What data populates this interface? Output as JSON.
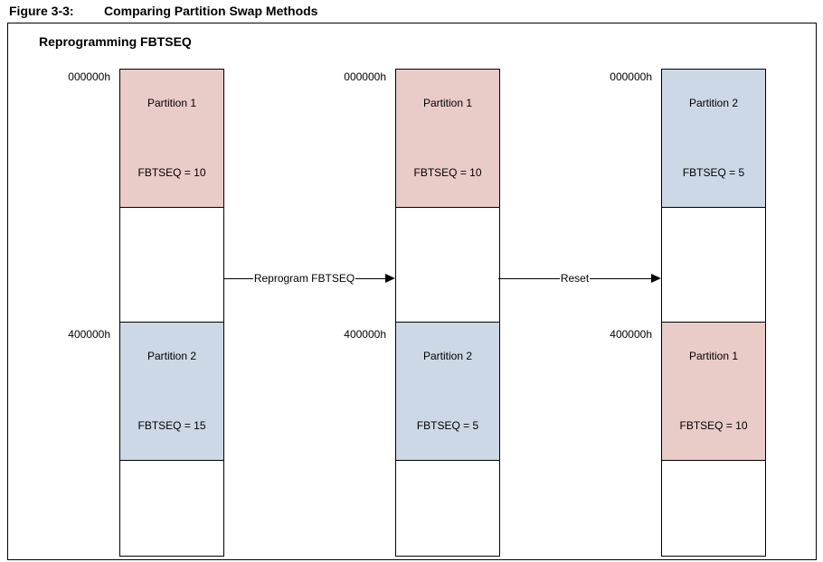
{
  "figure": {
    "label": "Figure 3-3:",
    "title": "Comparing Partition Swap Methods",
    "subtitle": "Reprogramming FBTSEQ"
  },
  "colors": {
    "partition1_fill": "#e9cbc8",
    "partition2_fill": "#ccd8e5",
    "line": "#000000"
  },
  "columns": [
    {
      "top_address": "000000h",
      "bottom_address": "400000h",
      "top_box": {
        "label": "Partition 1",
        "fbtseq": "FBTSEQ = 10",
        "color": "#e9cbc8"
      },
      "bottom_box": {
        "label": "Partition 2",
        "fbtseq": "FBTSEQ = 15",
        "color": "#ccd8e5"
      }
    },
    {
      "top_address": "000000h",
      "bottom_address": "400000h",
      "top_box": {
        "label": "Partition 1",
        "fbtseq": "FBTSEQ = 10",
        "color": "#e9cbc8"
      },
      "bottom_box": {
        "label": "Partition 2",
        "fbtseq": "FBTSEQ = 5",
        "color": "#ccd8e5"
      }
    },
    {
      "top_address": "000000h",
      "bottom_address": "400000h",
      "top_box": {
        "label": "Partition 2",
        "fbtseq": "FBTSEQ = 5",
        "color": "#ccd8e5"
      },
      "bottom_box": {
        "label": "Partition 1",
        "fbtseq": "FBTSEQ = 10",
        "color": "#e9cbc8"
      }
    }
  ],
  "arrows": [
    {
      "label": "Reprogram FBTSEQ"
    },
    {
      "label": "Reset"
    }
  ]
}
